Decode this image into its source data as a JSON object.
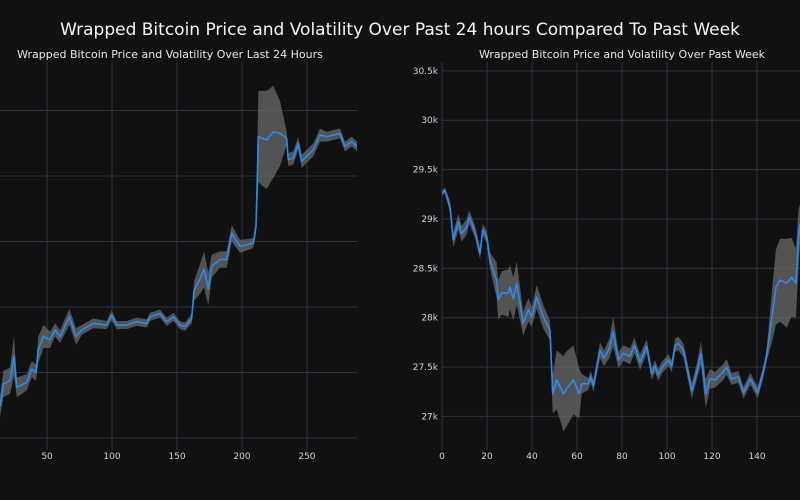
{
  "title": "Wrapped Bitcoin Price and Volatility Over Past 24 hours Compared To Past Week",
  "colors": {
    "background": "#111111",
    "grid": "#283442",
    "line": "#2b8cf0",
    "band": "#6a6a6a"
  },
  "chart_data": [
    {
      "type": "line",
      "title": "Wrapped Bitcoin Price and Volatility Over Last 24 Hours",
      "xlabel": "",
      "ylabel": "",
      "xlim": [
        13.8,
        288.5
      ],
      "ylim": [
        27127,
        29496
      ],
      "xticks": [
        50,
        100,
        150,
        200,
        250
      ],
      "xtick_labels": [
        "50",
        "100",
        "150",
        "200",
        "250"
      ],
      "ygrid": [
        27200,
        27600,
        28000,
        28400,
        28800,
        29200
      ],
      "ytick_labels_visible": false,
      "grid": true,
      "band": "price ± volatility",
      "x": [
        13.8,
        16.4,
        21.5,
        24.6,
        26.7,
        34.4,
        38.2,
        41.5,
        43.3,
        47.2,
        52.3,
        56.2,
        60,
        67.2,
        72.3,
        76.7,
        85.6,
        95.9,
        99.7,
        103.6,
        111.3,
        119,
        126.7,
        129.2,
        136.9,
        142,
        147.2,
        152.3,
        156.2,
        161.3,
        163.1,
        167.7,
        170.8,
        174.1,
        176.7,
        183.1,
        188.2,
        192.1,
        198.5,
        208.7,
        210.8,
        212.6,
        219,
        224.1,
        229.2,
        234.4,
        235.6,
        239.5,
        243.3,
        245.9,
        254.9,
        260,
        265.1,
        275.4,
        279.2,
        284.4,
        288.5
      ],
      "price": [
        27390,
        27530,
        27550,
        27700,
        27510,
        27540,
        27620,
        27600,
        27740,
        27820,
        27800,
        27860,
        27820,
        27940,
        27820,
        27860,
        27900,
        27890,
        27950,
        27890,
        27890,
        27910,
        27900,
        27940,
        27960,
        27910,
        27940,
        27890,
        27880,
        27930,
        28100,
        28170,
        28230,
        28110,
        28250,
        28290,
        28290,
        28450,
        28370,
        28390,
        28490,
        29040,
        29020,
        29070,
        29060,
        29030,
        28900,
        28910,
        29000,
        28890,
        28960,
        29050,
        29040,
        29060,
        28980,
        29010,
        28980
      ],
      "volatility": [
        60,
        80,
        80,
        120,
        60,
        50,
        50,
        50,
        80,
        70,
        50,
        40,
        40,
        50,
        50,
        30,
        30,
        25,
        30,
        25,
        25,
        25,
        25,
        25,
        25,
        25,
        25,
        25,
        25,
        30,
        60,
        90,
        110,
        100,
        70,
        50,
        50,
        50,
        40,
        30,
        40,
        280,
        300,
        280,
        200,
        40,
        40,
        40,
        40,
        40,
        40,
        40,
        30,
        30,
        30,
        30,
        30
      ]
    },
    {
      "type": "line",
      "title": "Wrapped Bitcoin Price and Volatility Over Past Week",
      "xlabel": "",
      "ylabel": "",
      "xlim": [
        0,
        159.1
      ],
      "ylim": [
        26660,
        30590
      ],
      "xticks": [
        0,
        20,
        40,
        60,
        80,
        100,
        120,
        140
      ],
      "xtick_labels": [
        "0",
        "20",
        "40",
        "60",
        "80",
        "100",
        "120",
        "140"
      ],
      "yticks": [
        27000,
        27500,
        28000,
        28500,
        29000,
        29500,
        30000,
        30500
      ],
      "ytick_labels": [
        "27k",
        "27.5k",
        "28k",
        "28.5k",
        "29k",
        "29.5k",
        "30k",
        "30.5k"
      ],
      "grid": true,
      "band": "price ± volatility",
      "x": [
        0,
        1.3,
        3.6,
        5,
        7.3,
        8.7,
        11,
        12.1,
        14.7,
        16.9,
        18.1,
        19.9,
        21.3,
        24.3,
        25,
        26.5,
        29.5,
        30.2,
        31.7,
        33.2,
        36.1,
        38.4,
        39.9,
        42.1,
        45,
        48,
        49.2,
        51,
        54,
        55.4,
        58.4,
        61,
        62.1,
        65,
        66.1,
        67.3,
        70.2,
        72,
        74.4,
        76.1,
        78.4,
        80.6,
        83.6,
        85.5,
        88,
        91,
        93.2,
        94.7,
        96.1,
        97.6,
        100.6,
        102.1,
        103.6,
        105,
        107.3,
        111,
        113.2,
        115.1,
        117.2,
        119.1,
        121.3,
        123.6,
        125,
        126.5,
        128.7,
        131.7,
        134,
        137,
        138,
        140.3,
        142.8,
        144.3,
        146.5,
        148.4,
        150.2,
        153.2,
        155.4,
        157.3,
        158.4,
        159.1
      ],
      "price": [
        29260,
        29290,
        29120,
        28790,
        28970,
        28850,
        28920,
        29020,
        28870,
        28650,
        28890,
        28820,
        28580,
        28380,
        28180,
        28250,
        28250,
        28310,
        28190,
        28350,
        27940,
        28080,
        28010,
        28210,
        28010,
        27870,
        27230,
        27370,
        27230,
        27280,
        27370,
        27230,
        27330,
        27330,
        27400,
        27310,
        27670,
        27590,
        27690,
        27860,
        27570,
        27640,
        27610,
        27720,
        27550,
        27710,
        27430,
        27510,
        27420,
        27490,
        27570,
        27510,
        27720,
        27740,
        27670,
        27260,
        27450,
        27640,
        27230,
        27380,
        27370,
        27420,
        27450,
        27500,
        27380,
        27400,
        27240,
        27380,
        27340,
        27240,
        27450,
        27620,
        27990,
        28310,
        28380,
        28350,
        28410,
        28350,
        28790,
        28950
      ],
      "volatility": [
        30,
        30,
        60,
        80,
        80,
        80,
        80,
        70,
        60,
        60,
        60,
        60,
        80,
        180,
        200,
        220,
        240,
        220,
        220,
        220,
        120,
        120,
        100,
        120,
        120,
        100,
        200,
        300,
        380,
        380,
        350,
        250,
        100,
        60,
        60,
        60,
        80,
        80,
        100,
        150,
        80,
        80,
        80,
        80,
        80,
        70,
        60,
        60,
        60,
        60,
        60,
        60,
        70,
        70,
        70,
        80,
        80,
        120,
        150,
        100,
        80,
        80,
        80,
        80,
        60,
        60,
        60,
        60,
        60,
        60,
        60,
        60,
        250,
        380,
        420,
        450,
        400,
        350,
        300,
        200
      ]
    }
  ]
}
